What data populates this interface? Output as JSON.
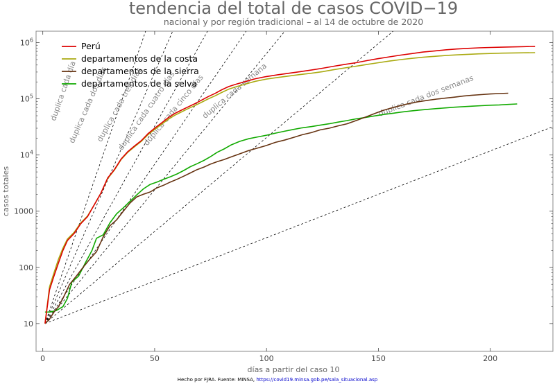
{
  "chart_data": {
    "type": "line",
    "title": "tendencia del total de casos COVID−19",
    "subtitle": "nacional y por región tradicional – al 14 de octubre de 2020",
    "xlabel": "días a partir del caso 10",
    "ylabel": "casos totales",
    "xlim": [
      -3,
      228
    ],
    "ylim": [
      3.2,
      1600000
    ],
    "yscale": "log",
    "grid": false,
    "legend_position": "top-left",
    "x_ticks": [
      0,
      50,
      100,
      150,
      200
    ],
    "x_tick_labels": [
      "0",
      "50",
      "100",
      "150",
      "200"
    ],
    "y_ticks": [
      10,
      100,
      1000,
      10000,
      100000,
      1000000
    ],
    "y_tick_labels": [
      "10",
      "100",
      "1000",
      "10^4",
      "10^5",
      "10^6"
    ],
    "series": [
      {
        "name": "Perú",
        "color": "#dd0000",
        "x": [
          1,
          3,
          5,
          7,
          9,
          11,
          14,
          17,
          20,
          23,
          26,
          29,
          32,
          35,
          38,
          41,
          44,
          47,
          50,
          53,
          56,
          59,
          62,
          65,
          68,
          71,
          74,
          77,
          80,
          83,
          86,
          90,
          95,
          100,
          105,
          110,
          115,
          120,
          125,
          130,
          135,
          140,
          145,
          150,
          155,
          160,
          165,
          170,
          175,
          180,
          185,
          190,
          195,
          200,
          205,
          210,
          215,
          220
        ],
        "values": [
          10,
          40,
          70,
          120,
          200,
          300,
          400,
          600,
          800,
          1300,
          2100,
          3900,
          5500,
          8500,
          11500,
          14500,
          18000,
          24000,
          30000,
          37000,
          46000,
          55000,
          63000,
          72000,
          82000,
          95000,
          110000,
          125000,
          145000,
          165000,
          180000,
          200000,
          228000,
          250000,
          268000,
          285000,
          305000,
          325000,
          350000,
          380000,
          410000,
          440000,
          480000,
          520000,
          560000,
          600000,
          640000,
          680000,
          710000,
          745000,
          770000,
          790000,
          810000,
          820000,
          830000,
          840000,
          850000,
          860000
        ]
      },
      {
        "name": "departamentos de la costa",
        "color": "#aaaa11",
        "x": [
          1,
          3,
          5,
          7,
          9,
          11,
          14,
          17,
          20,
          23,
          26,
          29,
          32,
          35,
          38,
          41,
          44,
          47,
          50,
          53,
          56,
          59,
          62,
          65,
          68,
          71,
          74,
          77,
          80,
          83,
          86,
          90,
          95,
          100,
          105,
          110,
          115,
          120,
          125,
          130,
          135,
          140,
          145,
          150,
          155,
          160,
          165,
          170,
          175,
          180,
          185,
          190,
          195,
          200,
          205,
          210,
          215,
          220
        ],
        "values": [
          10,
          45,
          80,
          140,
          220,
          320,
          420,
          620,
          820,
          1300,
          2100,
          3800,
          5400,
          8300,
          11200,
          14000,
          17500,
          23000,
          28500,
          35000,
          43000,
          51000,
          58500,
          67000,
          76000,
          87000,
          100000,
          113000,
          130000,
          148000,
          162000,
          180000,
          205000,
          225000,
          240000,
          255000,
          270000,
          285000,
          305000,
          330000,
          355000,
          380000,
          410000,
          440000,
          470000,
          500000,
          525000,
          550000,
          570000,
          590000,
          605000,
          620000,
          632000,
          642000,
          650000,
          656000,
          660000,
          663000
        ]
      },
      {
        "name": "departamentos de la sierra",
        "color": "#663311",
        "x": [
          1,
          3,
          5,
          7,
          9,
          12,
          15,
          18,
          21,
          24,
          27,
          30,
          33,
          36,
          39,
          42,
          45,
          48,
          51,
          54,
          57,
          60,
          63,
          66,
          69,
          72,
          75,
          78,
          81,
          84,
          88,
          92,
          96,
          100,
          104,
          108,
          112,
          116,
          120,
          124,
          128,
          132,
          136,
          140,
          144,
          148,
          152,
          156,
          160,
          164,
          168,
          172,
          176,
          180,
          184,
          188,
          192,
          196,
          200,
          204,
          208
        ],
        "values": [
          10,
          12,
          16,
          20,
          28,
          50,
          70,
          100,
          140,
          190,
          350,
          550,
          700,
          1000,
          1400,
          1800,
          2000,
          2200,
          2600,
          2900,
          3300,
          3700,
          4200,
          4800,
          5500,
          6100,
          6900,
          7600,
          8300,
          9200,
          10500,
          12000,
          13300,
          14800,
          16800,
          18400,
          20500,
          23000,
          25000,
          28000,
          30000,
          33000,
          36000,
          41000,
          47000,
          54000,
          62000,
          69000,
          76000,
          83000,
          89000,
          94000,
          99000,
          103000,
          107000,
          112000,
          116000,
          119000,
          122000,
          124000,
          126000
        ]
      },
      {
        "name": "departamentos de la selva",
        "color": "#11aa00",
        "x": [
          1,
          3,
          6,
          9,
          11,
          13,
          16,
          19,
          22,
          24,
          27,
          30,
          33,
          36,
          39,
          42,
          45,
          48,
          51,
          54,
          57,
          60,
          63,
          66,
          69,
          72,
          75,
          78,
          81,
          84,
          88,
          92,
          96,
          100,
          104,
          108,
          112,
          116,
          120,
          124,
          128,
          132,
          136,
          140,
          144,
          148,
          152,
          156,
          160,
          164,
          168,
          172,
          176,
          180,
          184,
          188,
          192,
          196,
          200,
          204,
          208,
          212
        ],
        "values": [
          16,
          16,
          17,
          20,
          28,
          55,
          70,
          120,
          200,
          330,
          380,
          620,
          900,
          1150,
          1500,
          1950,
          2500,
          3000,
          3300,
          3700,
          4100,
          4600,
          5300,
          6200,
          7000,
          8000,
          9400,
          11200,
          12800,
          15000,
          17500,
          19500,
          21000,
          22500,
          24500,
          26500,
          28500,
          30500,
          32000,
          34000,
          36000,
          38500,
          41000,
          44000,
          46500,
          49500,
          52500,
          55000,
          58000,
          60500,
          63000,
          65000,
          67000,
          69000,
          71000,
          72500,
          74000,
          75500,
          77000,
          78000,
          79500,
          81000
        ]
      }
    ],
    "reference_lines": [
      {
        "label": "duplica cada día",
        "doubling_days": 2.6,
        "label_x": 11,
        "label_y": 130000
      },
      {
        "label": "duplica cada dos días",
        "doubling_days": 3.3,
        "label_x": 22,
        "label_y": 72000
      },
      {
        "label": "duplica cada tres días",
        "doubling_days": 4.2,
        "label_x": 36,
        "label_y": 72000
      },
      {
        "label": "duplica cada cuatro días",
        "doubling_days": 5.2,
        "label_x": 48,
        "label_y": 55000
      },
      {
        "label": "duplica cada cinco días",
        "doubling_days": 6.2,
        "label_x": 60,
        "label_y": 56000
      },
      {
        "label": "duplica cada semana",
        "doubling_days": 9.0,
        "label_x": 87,
        "label_y": 120000
      },
      {
        "label": "duplica cada dos semanas",
        "doubling_days": 19.5,
        "label_x": 172,
        "label_y": 95000
      }
    ]
  },
  "footer": {
    "text": "Hecho por FJRA. Fuente: MINSA, ",
    "link": "https://covid19.minsa.gob.pe/sala_situacional.asp"
  }
}
